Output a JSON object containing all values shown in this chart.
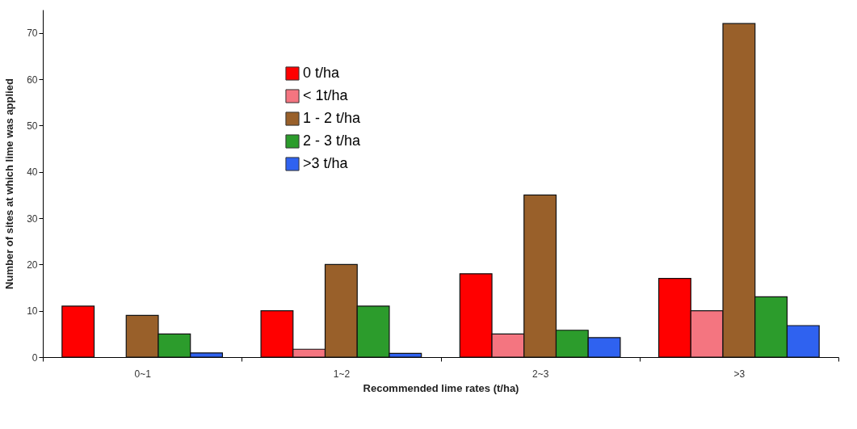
{
  "chart_data": {
    "type": "bar",
    "xlabel": "Recommended lime rates (t/ha)",
    "ylabel": "Number of sites at which lime was applied",
    "categories": [
      "0~1",
      "1~2",
      "2~3",
      ">3"
    ],
    "series": [
      {
        "name": "0 t/ha",
        "color": "#ff0000",
        "values": [
          11,
          10,
          18,
          17
        ]
      },
      {
        "name": "< 1t/ha",
        "color": "#f47580",
        "values": [
          null,
          1.7,
          5,
          10
        ]
      },
      {
        "name": "1 - 2 t/ha",
        "color": "#99602a",
        "values": [
          9,
          20,
          35,
          72
        ]
      },
      {
        "name": "2 - 3 t/ha",
        "color": "#2c9c2c",
        "values": [
          5,
          11,
          5.8,
          13
        ]
      },
      {
        "name": ">3 t/ha",
        "color": "#2f62f0",
        "values": [
          0.9,
          0.8,
          4.2,
          6.8
        ]
      }
    ],
    "ylim": [
      0,
      75
    ],
    "yticks": [
      0,
      10,
      20,
      30,
      40,
      50,
      60,
      70
    ],
    "grid": false,
    "legend": "top left"
  }
}
